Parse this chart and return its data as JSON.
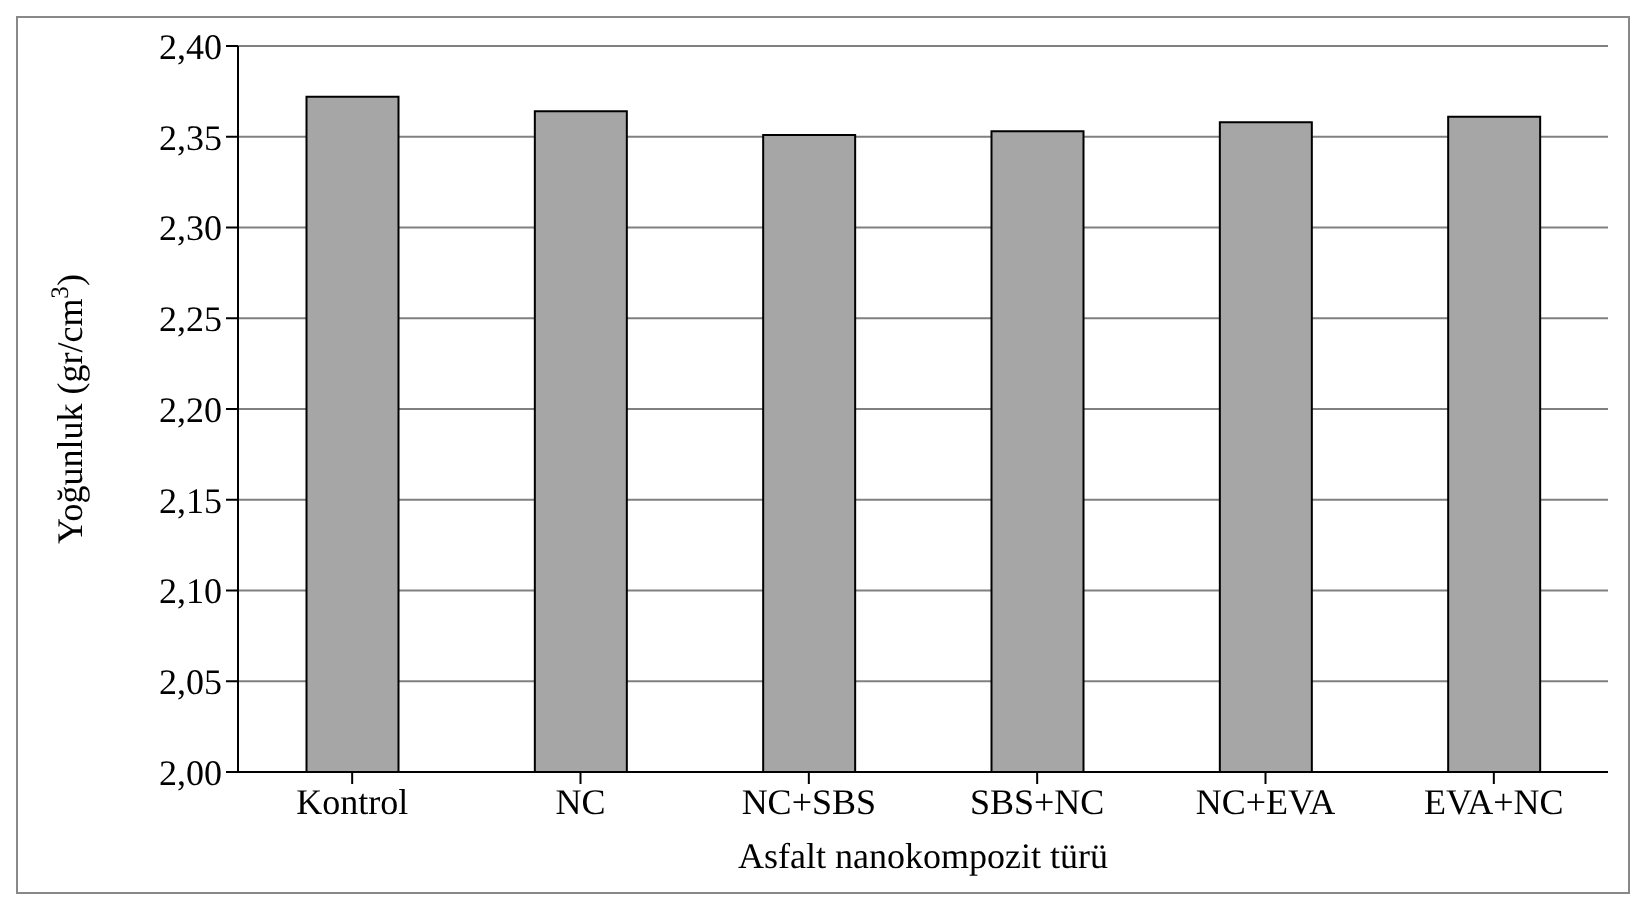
{
  "chart_data": {
    "type": "bar",
    "xlabel": "Asfalt nanokompozit türü",
    "ylabel": "Yoğunluk (gr/cm$^{3}$)",
    "categories": [
      "Kontrol",
      "NC",
      "NC+SBS",
      "SBS+NC",
      "NC+EVA",
      "EVA+NC"
    ],
    "values": [
      2.372,
      2.364,
      2.351,
      2.353,
      2.358,
      2.361
    ],
    "color": "#a6a6a6",
    "ylim": [
      2,
      2.4
    ],
    "yticks": [
      {
        "value": 2,
        "label": "2,00"
      },
      {
        "value": 2.05,
        "label": "2,05"
      },
      {
        "value": 2.1,
        "label": "2,10"
      },
      {
        "value": 2.15,
        "label": "2,15"
      },
      {
        "value": 2.2,
        "label": "2,20"
      },
      {
        "value": 2.25,
        "label": "2,25"
      },
      {
        "value": 2.3,
        "label": "2,30"
      },
      {
        "value": 2.35,
        "label": "2,35"
      },
      {
        "value": 2.4,
        "label": "2,40"
      }
    ],
    "grid": "y"
  }
}
